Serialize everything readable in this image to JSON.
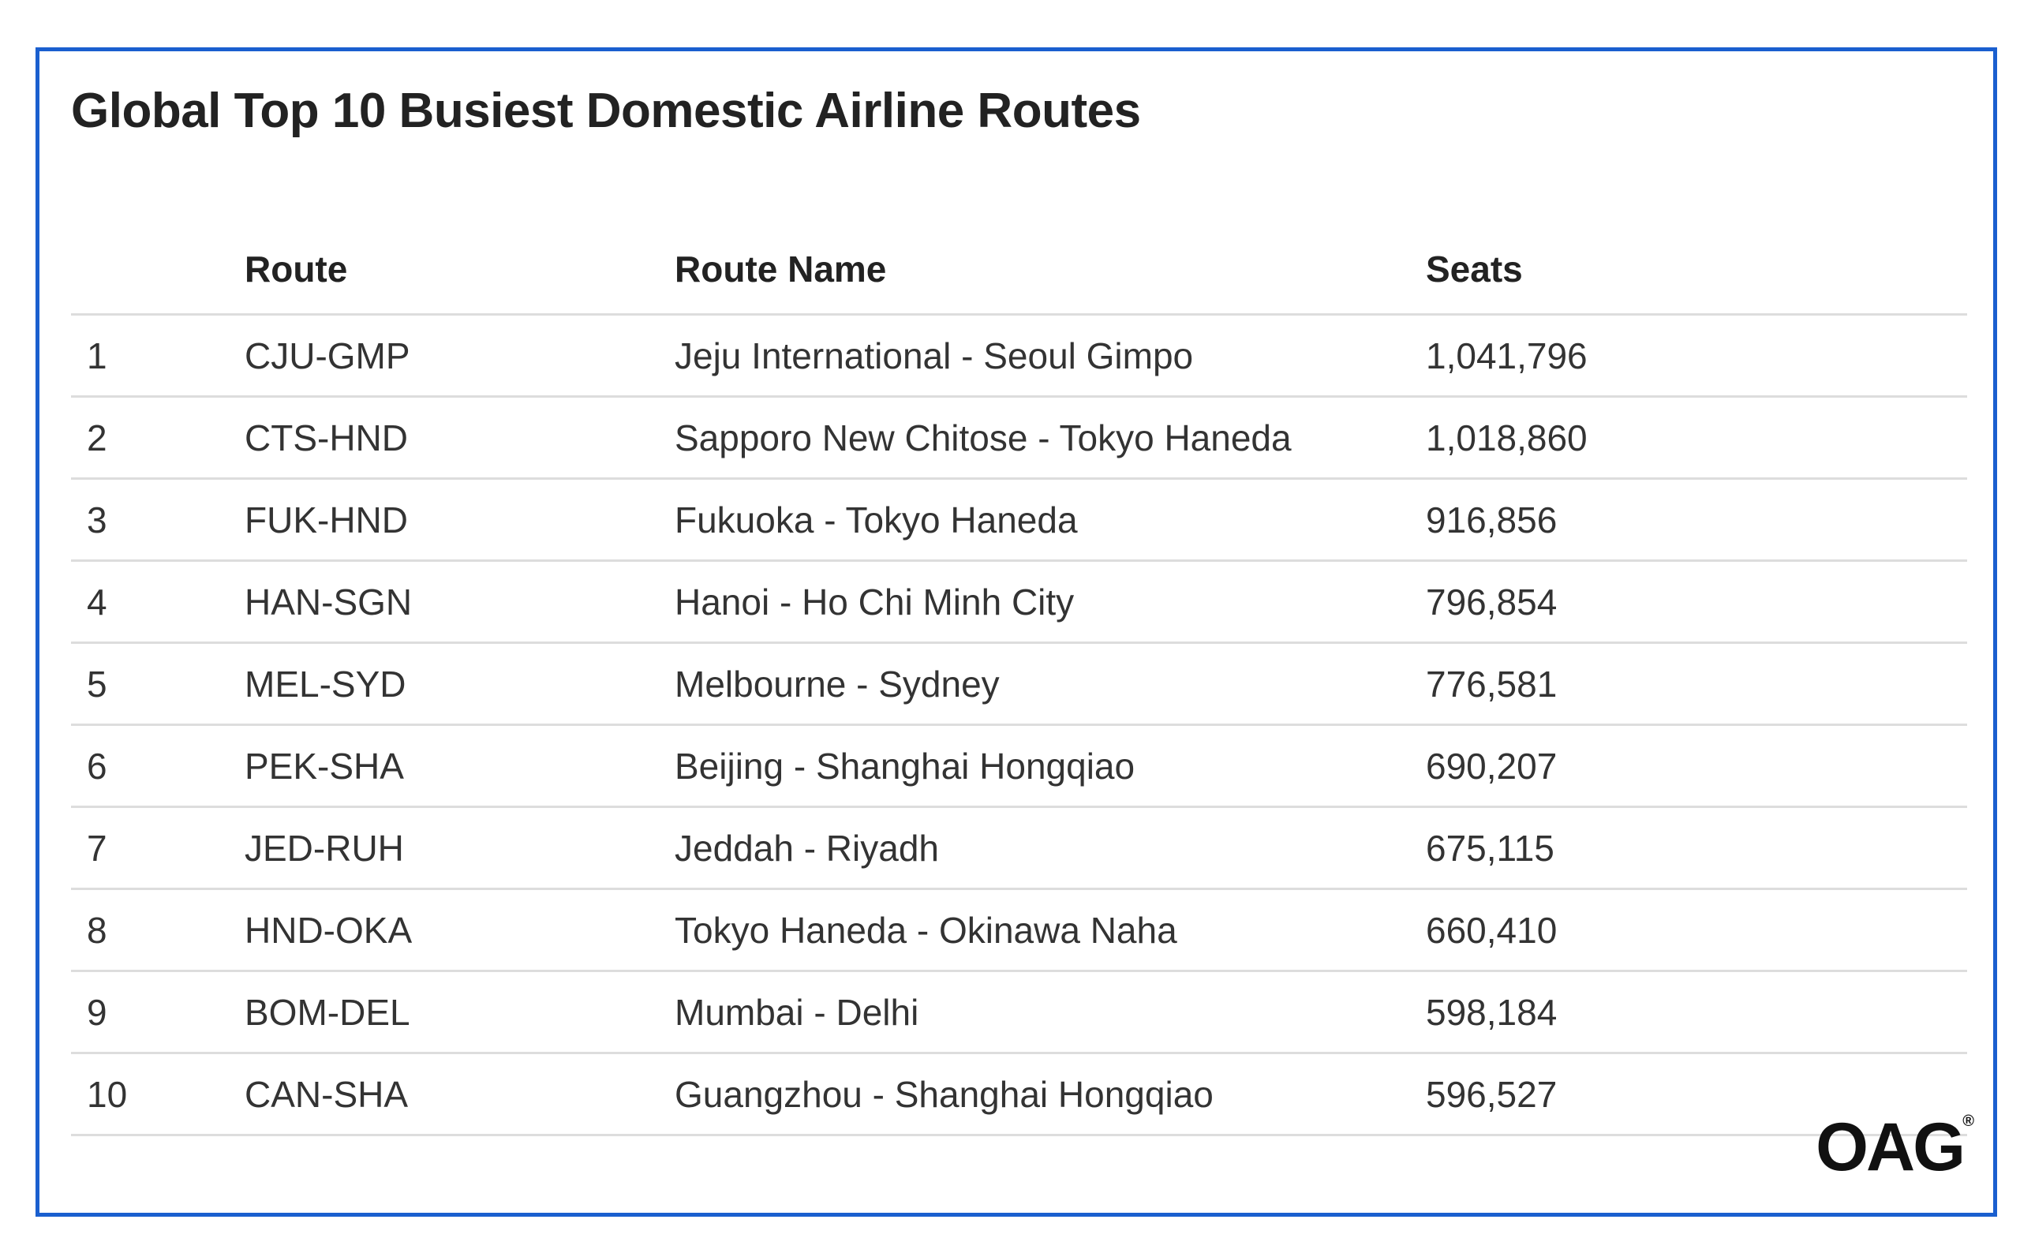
{
  "title": "Global Top 10 Busiest Domestic Airline Routes",
  "chart_data": {
    "type": "table",
    "title": "Global Top 10 Busiest Domestic Airline Routes",
    "columns": [
      "",
      "Route",
      "Route Name",
      "Seats"
    ],
    "rows": [
      {
        "rank": "1",
        "route": "CJU-GMP",
        "route_name": "Jeju International - Seoul Gimpo",
        "seats": "1,041,796"
      },
      {
        "rank": "2",
        "route": "CTS-HND",
        "route_name": "Sapporo New Chitose - Tokyo Haneda",
        "seats": "1,018,860"
      },
      {
        "rank": "3",
        "route": "FUK-HND",
        "route_name": "Fukuoka - Tokyo Haneda",
        "seats": "916,856"
      },
      {
        "rank": "4",
        "route": "HAN-SGN",
        "route_name": "Hanoi - Ho Chi Minh City",
        "seats": "796,854"
      },
      {
        "rank": "5",
        "route": "MEL-SYD",
        "route_name": "Melbourne - Sydney",
        "seats": "776,581"
      },
      {
        "rank": "6",
        "route": "PEK-SHA",
        "route_name": "Beijing - Shanghai Hongqiao",
        "seats": "690,207"
      },
      {
        "rank": "7",
        "route": "JED-RUH",
        "route_name": "Jeddah - Riyadh",
        "seats": "675,115"
      },
      {
        "rank": "8",
        "route": "HND-OKA",
        "route_name": "Tokyo Haneda - Okinawa Naha",
        "seats": "660,410"
      },
      {
        "rank": "9",
        "route": "BOM-DEL",
        "route_name": "Mumbai - Delhi",
        "seats": "598,184"
      },
      {
        "rank": "10",
        "route": "CAN-SHA",
        "route_name": "Guangzhou - Shanghai Hongqiao",
        "seats": "596,527"
      }
    ]
  },
  "logo": {
    "text": "OAG",
    "mark": "®"
  },
  "colors": {
    "frame_border": "#1a5fcf",
    "row_divider": "#dddddd",
    "text": "#222222"
  }
}
